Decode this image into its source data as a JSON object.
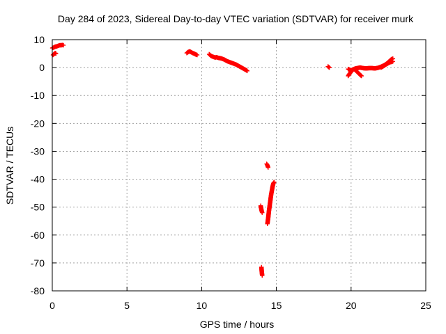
{
  "chart_data": {
    "type": "scatter",
    "title": "Day 284 of 2023, Sidereal Day-to-day VTEC variation (SDTVAR) for receiver murk",
    "xlabel": "GPS time / hours",
    "ylabel": "SDTVAR / TECUs",
    "xlim": [
      0,
      25
    ],
    "ylim": [
      -80,
      10
    ],
    "xticks": [
      "0",
      "5",
      "10",
      "15",
      "20",
      "25"
    ],
    "yticks": [
      "10",
      "0",
      "-10",
      "-20",
      "-30",
      "-40",
      "-50",
      "-60",
      "-70",
      "-80"
    ],
    "grid": true,
    "point_color": "#ff0000",
    "marker": "plus",
    "segments": [
      {
        "x": [
          0.0,
          0.1,
          0.2,
          0.3,
          0.4,
          0.5,
          0.6,
          0.7,
          0.75
        ],
        "y": [
          7.0,
          7.2,
          7.5,
          7.6,
          7.8,
          8.0,
          8.0,
          8.1,
          8.0
        ]
      },
      {
        "x": [
          0.05,
          0.1,
          0.15,
          0.2,
          0.25
        ],
        "y": [
          4.5,
          4.8,
          5.0,
          5.2,
          5.0
        ]
      },
      {
        "x": [
          9.0,
          9.1,
          9.2,
          9.3,
          9.4,
          9.5,
          9.6,
          9.7
        ],
        "y": [
          5.2,
          5.6,
          5.8,
          5.5,
          5.2,
          5.0,
          4.7,
          4.5
        ]
      },
      {
        "x": [
          10.5,
          10.6,
          10.7,
          10.8,
          10.9,
          11.0,
          11.1,
          11.2,
          11.3,
          11.4,
          11.5,
          11.6,
          11.7,
          11.8,
          11.9,
          12.0,
          12.1,
          12.2,
          12.3,
          12.4,
          12.5,
          12.6,
          12.7,
          12.8,
          12.9,
          13.0,
          13.05
        ],
        "y": [
          4.8,
          4.3,
          4.0,
          3.8,
          3.6,
          3.7,
          3.5,
          3.4,
          3.3,
          3.1,
          2.9,
          2.6,
          2.3,
          2.1,
          1.9,
          1.7,
          1.5,
          1.3,
          1.1,
          0.8,
          0.5,
          0.2,
          -0.1,
          -0.4,
          -0.7,
          -1.0,
          -1.2
        ]
      },
      {
        "x": [
          14.0,
          14.02,
          14.05
        ],
        "y": [
          -71.5,
          -73.0,
          -74.5
        ]
      },
      {
        "x": [
          13.95,
          14.0,
          14.05
        ],
        "y": [
          -49.5,
          -51.0,
          -52.0
        ]
      },
      {
        "x": [
          14.35,
          14.4,
          14.45
        ],
        "y": [
          -34.5,
          -35.0,
          -35.8
        ]
      },
      {
        "x": [
          14.4,
          14.45,
          14.5,
          14.55,
          14.6,
          14.65,
          14.7,
          14.75,
          14.8,
          14.85
        ],
        "y": [
          -56.0,
          -54.0,
          -51.5,
          -49.5,
          -47.5,
          -45.5,
          -44.0,
          -42.5,
          -41.5,
          -41.0
        ]
      },
      {
        "x": [
          18.45,
          18.5,
          18.55
        ],
        "y": [
          0.4,
          0.2,
          0.0
        ]
      },
      {
        "x": [
          19.8,
          19.9,
          20.0,
          20.1,
          20.2,
          20.3,
          20.4,
          20.5,
          20.6,
          20.7
        ],
        "y": [
          -3.0,
          -2.2,
          -1.5,
          -0.8,
          -0.5,
          -1.0,
          -1.5,
          -2.0,
          -2.6,
          -3.0
        ]
      },
      {
        "x": [
          19.8,
          19.9,
          20.0,
          20.1,
          20.2,
          20.3,
          20.4,
          20.5,
          20.6,
          20.8,
          21.0,
          21.2,
          21.4,
          21.6,
          21.8,
          22.0,
          22.2,
          22.4,
          22.5,
          22.6,
          22.7,
          22.8
        ],
        "y": [
          -0.5,
          -0.8,
          -1.0,
          -0.8,
          -0.5,
          -0.3,
          -0.2,
          -0.1,
          0.0,
          -0.2,
          -0.3,
          -0.2,
          -0.2,
          -0.3,
          -0.1,
          0.3,
          0.8,
          1.5,
          2.0,
          2.5,
          3.0,
          3.2
        ]
      },
      {
        "x": [
          22.0,
          22.1,
          22.2,
          22.3,
          22.4,
          22.5,
          22.6,
          22.7,
          22.8
        ],
        "y": [
          0.0,
          0.3,
          0.6,
          1.0,
          1.3,
          1.6,
          1.9,
          2.0,
          2.2
        ]
      }
    ]
  }
}
